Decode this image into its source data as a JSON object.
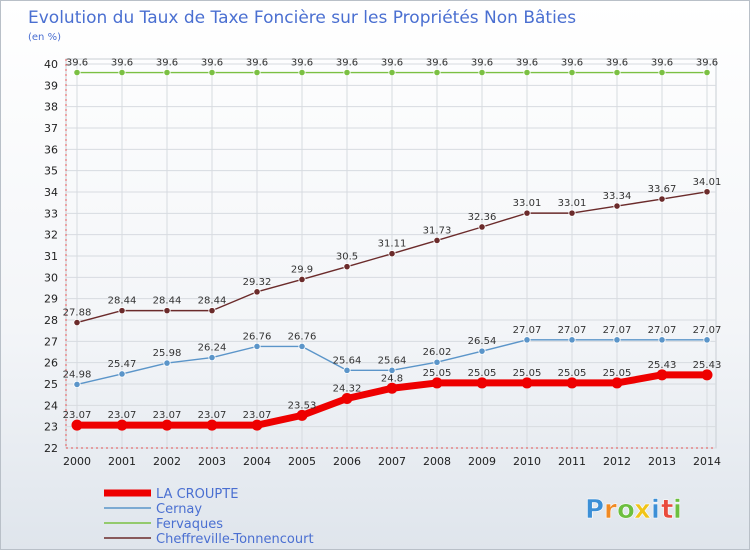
{
  "chart_data": {
    "type": "line",
    "title": "Evolution du Taux de Taxe Foncière sur les Propriétés Non Bâties",
    "unit_label": "(en %)",
    "xlabel": "",
    "ylabel": "",
    "x": [
      "2000",
      "2001",
      "2002",
      "2003",
      "2004",
      "2005",
      "2006",
      "2007",
      "2008",
      "2009",
      "2010",
      "2011",
      "2012",
      "2013",
      "2014"
    ],
    "ylim": [
      22,
      40
    ],
    "yticks": [
      22,
      23,
      24,
      25,
      26,
      27,
      28,
      29,
      30,
      31,
      32,
      33,
      34,
      35,
      36,
      37,
      38,
      39,
      40
    ],
    "grid": true,
    "legend_position": "bottom-left",
    "series": [
      {
        "name": "LA CROUPTE",
        "color": "#ee0000",
        "values": [
          23.07,
          23.07,
          23.07,
          23.07,
          23.07,
          23.53,
          24.32,
          24.8,
          25.05,
          25.05,
          25.05,
          25.05,
          25.05,
          25.43,
          25.43
        ],
        "labels": [
          "23.07",
          "23.07",
          "23.07",
          "23.07",
          "23.07",
          "23.53",
          "24.32",
          "24.8",
          "25.05",
          "25.05",
          "25.05",
          "25.05",
          "25.05",
          "25.43",
          "25.43"
        ]
      },
      {
        "name": "Cernay",
        "color": "#5b95c9",
        "values": [
          24.98,
          25.47,
          25.98,
          26.24,
          26.76,
          26.76,
          25.64,
          25.64,
          26.02,
          26.54,
          27.07,
          27.07,
          27.07,
          27.07,
          27.07
        ],
        "labels": [
          "24.98",
          "25.47",
          "25.98",
          "26.24",
          "26.76",
          "26.76",
          "25.64",
          "25.64",
          "26.02",
          "26.54",
          "27.07",
          "27.07",
          "27.07",
          "27.07",
          "27.07"
        ]
      },
      {
        "name": "Fervaques",
        "color": "#7bc043",
        "values": [
          39.6,
          39.6,
          39.6,
          39.6,
          39.6,
          39.6,
          39.6,
          39.6,
          39.6,
          39.6,
          39.6,
          39.6,
          39.6,
          39.6,
          39.6
        ],
        "labels": [
          "39.6",
          "39.6",
          "39.6",
          "39.6",
          "39.6",
          "39.6",
          "39.6",
          "39.6",
          "39.6",
          "39.6",
          "39.6",
          "39.6",
          "39.6",
          "39.6",
          "39.6"
        ]
      },
      {
        "name": "Cheffreville-Tonnencourt",
        "color": "#6b2b2b",
        "values": [
          27.88,
          28.44,
          28.44,
          28.44,
          29.32,
          29.9,
          30.5,
          31.11,
          31.73,
          32.36,
          33.01,
          33.01,
          33.34,
          33.67,
          34.01
        ],
        "labels": [
          "27.88",
          "28.44",
          "28.44",
          "28.44",
          "29.32",
          "29.9",
          "30.5",
          "31.11",
          "31.73",
          "32.36",
          "33.01",
          "33.01",
          "33.34",
          "33.67",
          "34.01"
        ]
      }
    ]
  },
  "logo": {
    "text": "Proxiti",
    "letters": [
      "P",
      "r",
      "o",
      "x",
      "i",
      "t",
      "i"
    ],
    "colors": [
      "#3c8fd6",
      "#f08a24",
      "#6cbf3f",
      "#f0c419",
      "#3c8fd6",
      "#e94b3c",
      "#6cbf3f"
    ]
  }
}
